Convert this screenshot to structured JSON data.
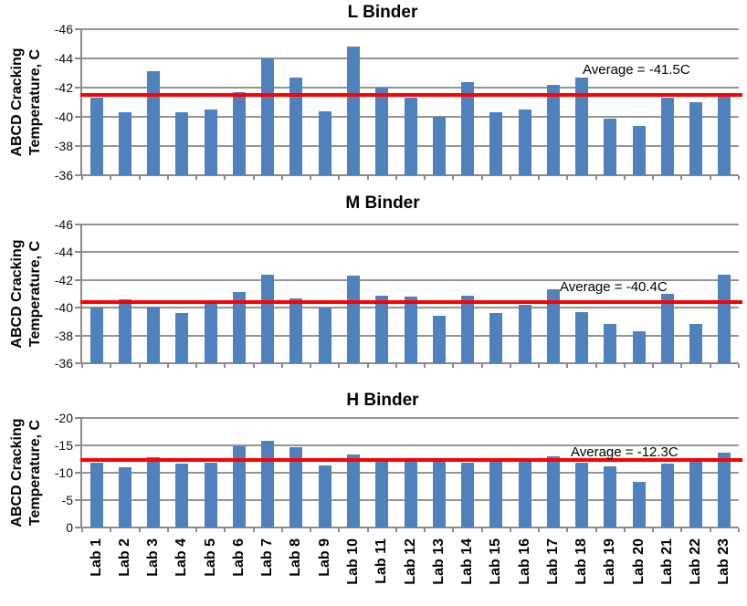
{
  "figure": {
    "y_axis_title_line1": "ABCD Cracking",
    "y_axis_title_line2": "Temperature, C"
  },
  "chart_data": [
    {
      "type": "bar",
      "title": "L Binder",
      "ylabel": "ABCD Cracking Temperature, C",
      "ylim": [
        -46,
        -36
      ],
      "yticks": [
        -46,
        -44,
        -42,
        -40,
        -38,
        -36
      ],
      "ytick_labels": [
        "-46",
        "-44",
        "-42",
        "-40",
        "-38",
        "-36"
      ],
      "axis_inverted": true,
      "grid": true,
      "bar_color": "#4F81BD",
      "average": -41.5,
      "average_label": "Average = -41.5C",
      "average_line_color": "#FF0000",
      "categories": [
        "Lab 1",
        "Lab 2",
        "Lab 3",
        "Lab 4",
        "Lab 5",
        "Lab 6",
        "Lab 7",
        "Lab 8",
        "Lab 9",
        "Lab 10",
        "Lab 11",
        "Lab 12",
        "Lab 13",
        "Lab 14",
        "Lab 15",
        "Lab 16",
        "Lab 17",
        "Lab 18",
        "Lab 19",
        "Lab 20",
        "Lab 21",
        "Lab 22",
        "Lab 23"
      ],
      "values": [
        -41.3,
        -40.3,
        -43.1,
        -40.3,
        -40.5,
        -41.7,
        -44.0,
        -42.7,
        -40.4,
        -44.8,
        -42.0,
        -41.3,
        -40.0,
        -42.4,
        -40.3,
        -40.5,
        -42.2,
        -42.7,
        -39.9,
        -39.4,
        -41.3,
        -41.0,
        -41.4
      ]
    },
    {
      "type": "bar",
      "title": "M Binder",
      "ylabel": "ABCD Cracking Temperature, C",
      "ylim": [
        -46,
        -36
      ],
      "yticks": [
        -46,
        -44,
        -42,
        -40,
        -38,
        -36
      ],
      "ytick_labels": [
        "-46",
        "-44",
        "-42",
        "-40",
        "-38",
        "-36"
      ],
      "axis_inverted": true,
      "grid": true,
      "bar_color": "#4F81BD",
      "average": -40.4,
      "average_label": "Average = -40.4C",
      "average_line_color": "#FF0000",
      "categories": [
        "Lab 1",
        "Lab 2",
        "Lab 3",
        "Lab 4",
        "Lab 5",
        "Lab 6",
        "Lab 7",
        "Lab 8",
        "Lab 9",
        "Lab 10",
        "Lab 11",
        "Lab 12",
        "Lab 13",
        "Lab 14",
        "Lab 15",
        "Lab 16",
        "Lab 17",
        "Lab 18",
        "Lab 19",
        "Lab 20",
        "Lab 21",
        "Lab 22",
        "Lab 23"
      ],
      "values": [
        -40.0,
        -40.6,
        -40.1,
        -39.6,
        -40.3,
        -41.1,
        -42.4,
        -40.7,
        -40.0,
        -42.3,
        -40.9,
        -40.8,
        -39.4,
        -40.9,
        -39.6,
        -40.2,
        -41.3,
        -39.7,
        -38.8,
        -38.3,
        -41.0,
        -38.8,
        -42.4
      ]
    },
    {
      "type": "bar",
      "title": "H Binder",
      "ylabel": "ABCD Cracking Temperature, C",
      "ylim": [
        -20,
        0
      ],
      "yticks": [
        -20,
        -15,
        -10,
        -5,
        0
      ],
      "ytick_labels": [
        "-20",
        "-15",
        "-10",
        "-5",
        "0"
      ],
      "axis_inverted": true,
      "grid": true,
      "bar_color": "#4F81BD",
      "average": -12.3,
      "average_label": "Average = -12.3C",
      "average_line_color": "#FF0000",
      "categories": [
        "Lab 1",
        "Lab 2",
        "Lab 3",
        "Lab 4",
        "Lab 5",
        "Lab 6",
        "Lab 7",
        "Lab 8",
        "Lab 9",
        "Lab 10",
        "Lab 11",
        "Lab 12",
        "Lab 13",
        "Lab 14",
        "Lab 15",
        "Lab 16",
        "Lab 17",
        "Lab 18",
        "Lab 19",
        "Lab 20",
        "Lab 21",
        "Lab 22",
        "Lab 23"
      ],
      "values": [
        -11.9,
        -11.0,
        -12.9,
        -11.6,
        -11.9,
        -14.9,
        -15.8,
        -14.7,
        -11.3,
        -13.4,
        -12.7,
        -12.1,
        -12.1,
        -11.9,
        -12.1,
        -12.1,
        -13.0,
        -11.9,
        -11.1,
        -8.3,
        -11.6,
        -12.1,
        -13.7
      ]
    }
  ]
}
